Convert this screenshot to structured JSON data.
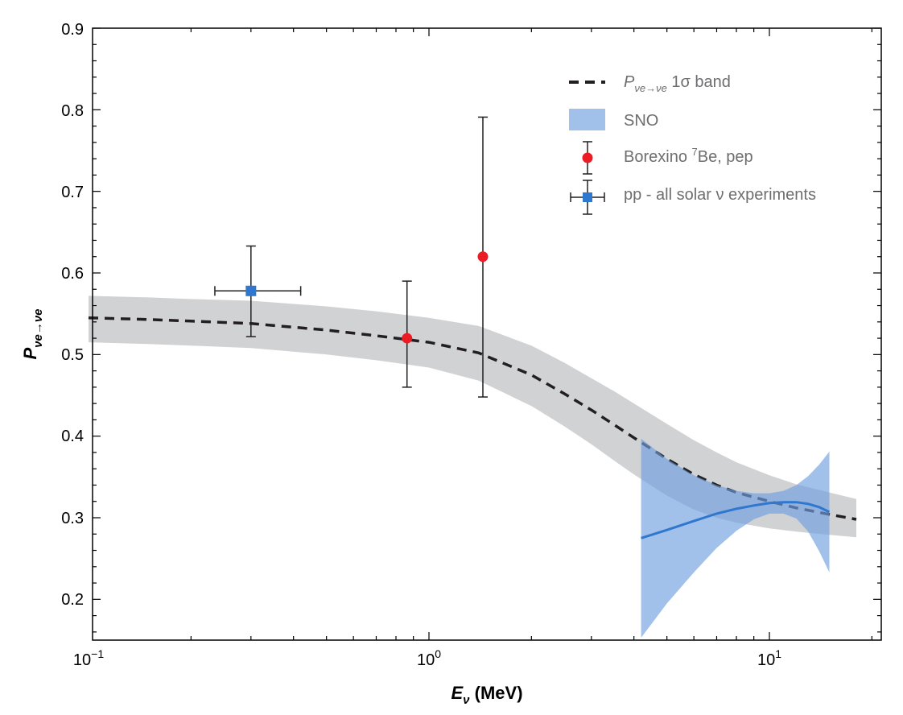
{
  "chart_data": {
    "type": "line",
    "x_scale": "log",
    "xlim": [
      0.1,
      22
    ],
    "ylim": [
      0.15,
      0.9
    ],
    "x_ticks": [
      {
        "value": 0.1,
        "base": "10",
        "exp": "−1"
      },
      {
        "value": 1,
        "base": "10",
        "exp": "0"
      },
      {
        "value": 10,
        "base": "10",
        "exp": "1"
      }
    ],
    "y_ticks": [
      "0.2",
      "0.3",
      "0.4",
      "0.5",
      "0.6",
      "0.7",
      "0.8",
      "0.9"
    ],
    "xlabel": {
      "main": "E",
      "sub": "ν",
      "unit": " (MeV)"
    },
    "ylabel": {
      "main": "P",
      "sub": "νe→νe"
    },
    "grid": false,
    "legend_position": "top-right",
    "legend": {
      "band": {
        "symbol": "P",
        "sub": "νe→νe",
        "text": " 1σ band"
      },
      "sno": "SNO",
      "borexino": {
        "pre": "Borexino ",
        "sup": "7",
        "post": "Be, pep"
      },
      "pp": "pp - all solar ν experiments"
    },
    "colors": {
      "band_fill": "#d1d2d4",
      "band_line": "#231f20",
      "sno_fill": "#6f9fe0",
      "sno_line": "#2f77cf",
      "borexino": "#ec1c24",
      "pp": "#2f77cf",
      "errorbar": "#231f20"
    },
    "series": [
      {
        "id": "msw-1sigma-band",
        "x": [
          0.1,
          0.15,
          0.2,
          0.3,
          0.5,
          0.7,
          1.0,
          1.4,
          2.0,
          2.5,
          3.0,
          3.5,
          4.0,
          5.0,
          6.0,
          7.0,
          8.0,
          10.0,
          12.0,
          15.0,
          18.0
        ],
        "y": [
          0.545,
          0.543,
          0.541,
          0.538,
          0.53,
          0.523,
          0.515,
          0.502,
          0.475,
          0.452,
          0.432,
          0.414,
          0.398,
          0.372,
          0.353,
          0.34,
          0.331,
          0.32,
          0.312,
          0.304,
          0.298
        ],
        "lo": [
          0.515,
          0.513,
          0.511,
          0.508,
          0.5,
          0.493,
          0.484,
          0.468,
          0.437,
          0.412,
          0.39,
          0.37,
          0.353,
          0.327,
          0.31,
          0.3,
          0.294,
          0.287,
          0.283,
          0.279,
          0.276
        ],
        "hi": [
          0.572,
          0.57,
          0.568,
          0.566,
          0.559,
          0.553,
          0.545,
          0.535,
          0.511,
          0.49,
          0.471,
          0.455,
          0.44,
          0.415,
          0.395,
          0.38,
          0.368,
          0.352,
          0.341,
          0.331,
          0.323
        ]
      },
      {
        "id": "sno",
        "x": [
          4.2,
          5.0,
          6.0,
          7.0,
          8.0,
          9.0,
          10.0,
          11.0,
          12.0,
          13.0,
          14.0,
          15.0
        ],
        "y": [
          0.275,
          0.285,
          0.296,
          0.305,
          0.311,
          0.315,
          0.318,
          0.319,
          0.319,
          0.317,
          0.313,
          0.307
        ],
        "lo": [
          0.153,
          0.195,
          0.233,
          0.263,
          0.284,
          0.298,
          0.305,
          0.305,
          0.299,
          0.283,
          0.259,
          0.233
        ],
        "hi": [
          0.397,
          0.372,
          0.352,
          0.34,
          0.333,
          0.33,
          0.33,
          0.333,
          0.34,
          0.351,
          0.365,
          0.381
        ]
      }
    ],
    "points": [
      {
        "id": "pp",
        "x": 0.3,
        "y": 0.578,
        "yerr": [
          0.522,
          0.633
        ],
        "xerr": [
          0.235,
          0.42
        ],
        "marker": "square"
      },
      {
        "id": "be7",
        "x": 0.862,
        "y": 0.52,
        "yerr": [
          0.46,
          0.59
        ],
        "marker": "circle"
      },
      {
        "id": "pep",
        "x": 1.44,
        "y": 0.62,
        "yerr": [
          0.448,
          0.791
        ],
        "marker": "circle"
      }
    ]
  }
}
